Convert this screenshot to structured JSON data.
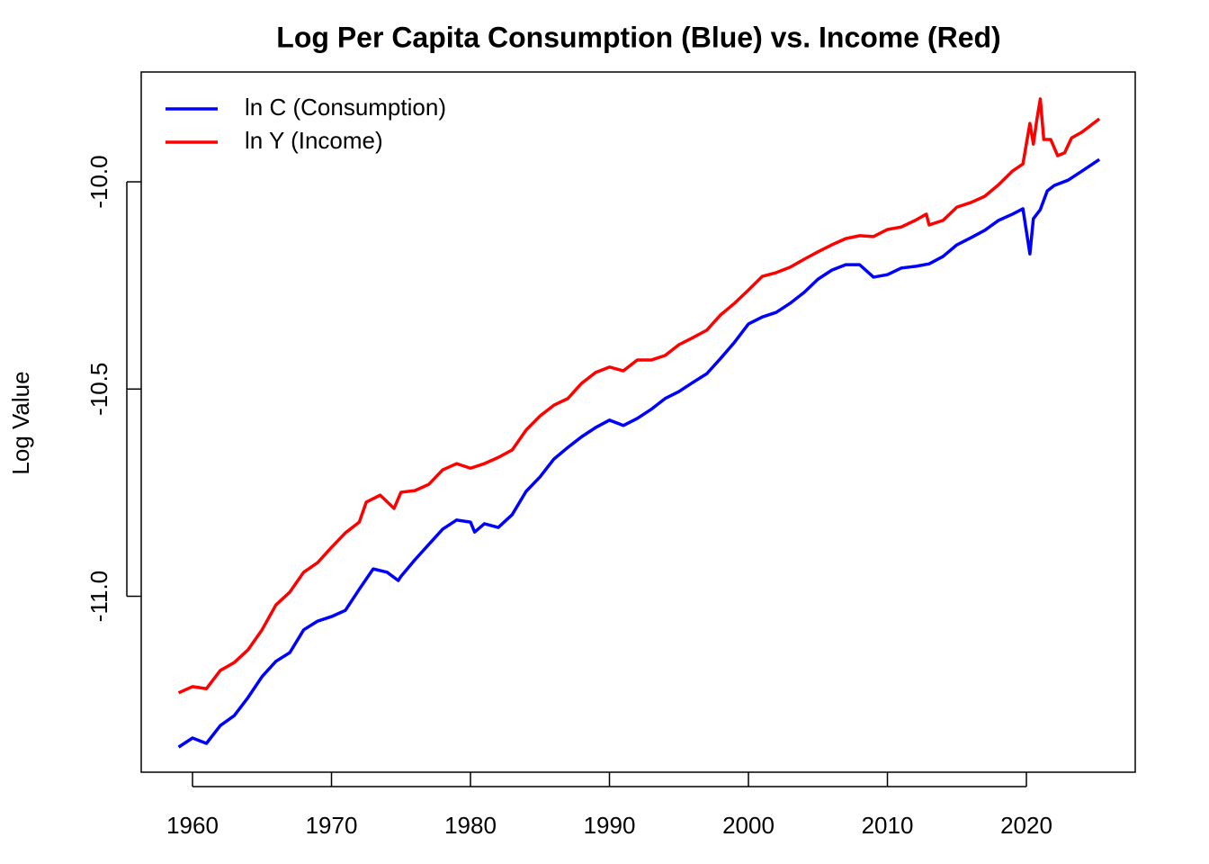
{
  "chart_data": {
    "type": "line",
    "title": "Log Per Capita Consumption (Blue) vs. Income (Red)",
    "ylabel": "Log Value",
    "xlim": [
      1956.31,
      2027.83
    ],
    "ylim": [
      -11.4245,
      -9.735
    ],
    "xticks": [
      1960,
      1970,
      1980,
      1990,
      2000,
      2010,
      2020
    ],
    "yticks": [
      {
        "value": -11.0,
        "label": "-11.0"
      },
      {
        "value": -10.5,
        "label": "-10.5"
      },
      {
        "value": -10.0,
        "label": "-10.0"
      }
    ],
    "legend": "topleft",
    "series": [
      {
        "name": "ln C (Consumption)",
        "color": "#0000ff",
        "x": [
          1959,
          1960,
          1961,
          1962,
          1963,
          1964,
          1965,
          1966,
          1967,
          1968,
          1969,
          1970,
          1971,
          1972,
          1973,
          1974,
          1974.8,
          1975,
          1976,
          1977,
          1978,
          1979,
          1980,
          1980.3,
          1981,
          1982,
          1983,
          1984,
          1985,
          1986,
          1987,
          1988,
          1989,
          1990,
          1991,
          1992,
          1993,
          1994,
          1995,
          1996,
          1997,
          1998,
          1999,
          2000,
          2001,
          2002,
          2003,
          2004,
          2005,
          2006,
          2007,
          2008,
          2009,
          2010,
          2011,
          2012,
          2013,
          2014,
          2015,
          2016,
          2017,
          2018,
          2019,
          2019.75,
          2020.25,
          2020.5,
          2021,
          2021.5,
          2022,
          2023,
          2024,
          2025.25
        ],
        "values": [
          -11.364,
          -11.342,
          -11.355,
          -11.312,
          -11.288,
          -11.244,
          -11.194,
          -11.157,
          -11.136,
          -11.081,
          -11.06,
          -11.049,
          -11.034,
          -10.983,
          -10.934,
          -10.942,
          -10.962,
          -10.952,
          -10.912,
          -10.875,
          -10.838,
          -10.816,
          -10.821,
          -10.845,
          -10.825,
          -10.834,
          -10.803,
          -10.747,
          -10.712,
          -10.669,
          -10.641,
          -10.615,
          -10.593,
          -10.575,
          -10.588,
          -10.571,
          -10.549,
          -10.523,
          -10.506,
          -10.484,
          -10.463,
          -10.426,
          -10.387,
          -10.343,
          -10.326,
          -10.315,
          -10.293,
          -10.267,
          -10.235,
          -10.213,
          -10.2,
          -10.2,
          -10.23,
          -10.224,
          -10.208,
          -10.204,
          -10.198,
          -10.18,
          -10.152,
          -10.135,
          -10.117,
          -10.093,
          -10.078,
          -10.065,
          -10.174,
          -10.089,
          -10.067,
          -10.022,
          -10.009,
          -9.996,
          -9.974,
          -9.946
        ]
      },
      {
        "name": "ln Y (Income)",
        "color": "#ff0000",
        "x": [
          1959,
          1960,
          1961,
          1962,
          1963,
          1964,
          1965,
          1966,
          1967,
          1968,
          1969,
          1970,
          1971,
          1972,
          1972.5,
          1973.5,
          1974.5,
          1975,
          1976,
          1977,
          1978,
          1979,
          1980,
          1981,
          1982,
          1983,
          1984,
          1985,
          1986,
          1987,
          1988,
          1989,
          1990,
          1991,
          1992,
          1993,
          1994,
          1995,
          1996,
          1997,
          1998,
          1999,
          2000,
          2001,
          2002,
          2003,
          2004,
          2005,
          2006,
          2007,
          2008,
          2009,
          2010,
          2011,
          2012,
          2012.8,
          2013,
          2014,
          2015,
          2016,
          2017,
          2018,
          2019,
          2019.75,
          2020.25,
          2020.5,
          2020.75,
          2021,
          2021.25,
          2021.75,
          2022.25,
          2022.75,
          2023.25,
          2024,
          2025.25
        ],
        "values": [
          -11.233,
          -11.218,
          -11.223,
          -11.179,
          -11.16,
          -11.129,
          -11.081,
          -11.021,
          -10.99,
          -10.942,
          -10.919,
          -10.882,
          -10.847,
          -10.821,
          -10.773,
          -10.756,
          -10.788,
          -10.749,
          -10.745,
          -10.73,
          -10.695,
          -10.68,
          -10.691,
          -10.68,
          -10.665,
          -10.647,
          -10.599,
          -10.565,
          -10.539,
          -10.523,
          -10.486,
          -10.46,
          -10.447,
          -10.456,
          -10.43,
          -10.43,
          -10.419,
          -10.393,
          -10.376,
          -10.358,
          -10.321,
          -10.293,
          -10.261,
          -10.228,
          -10.219,
          -10.206,
          -10.187,
          -10.169,
          -10.152,
          -10.137,
          -10.13,
          -10.132,
          -10.115,
          -10.109,
          -10.093,
          -10.078,
          -10.104,
          -10.093,
          -10.061,
          -10.05,
          -10.035,
          -10.007,
          -9.974,
          -9.957,
          -9.859,
          -9.909,
          -9.85,
          -9.8,
          -9.898,
          -9.898,
          -9.937,
          -9.93,
          -9.894,
          -9.88,
          -9.848
        ]
      }
    ]
  }
}
